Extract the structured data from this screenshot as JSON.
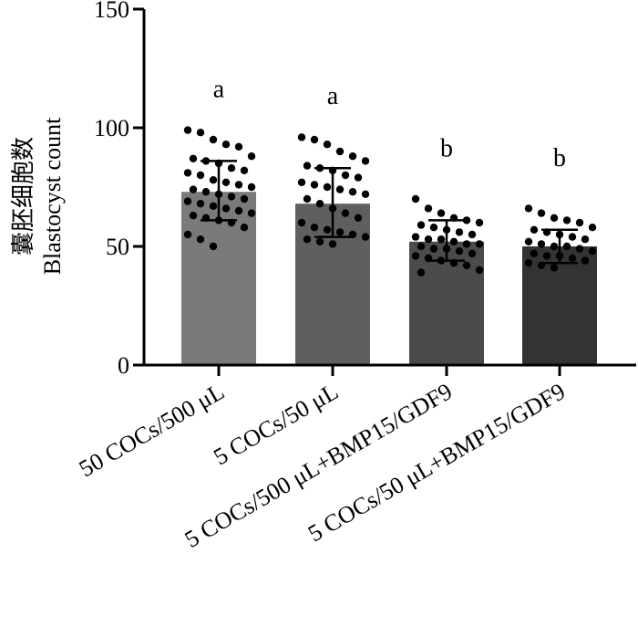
{
  "chart_data": {
    "type": "bar",
    "ylabel_cn": "囊胚细胞数",
    "ylabel_en": "Blastocyst count",
    "xlabel": "",
    "ylim": [
      0,
      150
    ],
    "yticks": [
      "0",
      "50",
      "100",
      "150"
    ],
    "grid": false,
    "categories": [
      "50 COCs/500 μL",
      "5 COCs/50 μL",
      "5 COCs/500 μL+BMP15/GDF9",
      "5 COCs/50 μL+BMP15/GDF9"
    ],
    "values": [
      73,
      68,
      52,
      50
    ],
    "error_low": [
      61,
      54,
      44,
      43
    ],
    "error_high": [
      86,
      83,
      61,
      57
    ],
    "significance": [
      "a",
      "a",
      "b",
      "b"
    ],
    "colors": [
      "#7a7a7a",
      "#5f5f5f",
      "#4b4b4b",
      "#333333"
    ],
    "points": [
      [
        99,
        98,
        95,
        93,
        92,
        88,
        87,
        86,
        85,
        83,
        82,
        81,
        80,
        78,
        77,
        76,
        75,
        74,
        73,
        72,
        71,
        70,
        69,
        68,
        67,
        66,
        65,
        64,
        63,
        62,
        61,
        60,
        58,
        55,
        53,
        50
      ],
      [
        96,
        95,
        93,
        90,
        88,
        86,
        84,
        83,
        82,
        80,
        79,
        77,
        76,
        75,
        74,
        73,
        72,
        70,
        68,
        66,
        64,
        62,
        60,
        58,
        57,
        56,
        55,
        54,
        53,
        52,
        51
      ],
      [
        70,
        66,
        64,
        62,
        61,
        60,
        59,
        58,
        57,
        56,
        55,
        54,
        53,
        53,
        52,
        51,
        51,
        50,
        49,
        49,
        48,
        47,
        46,
        45,
        44,
        43,
        42,
        40,
        39
      ],
      [
        66,
        64,
        62,
        61,
        60,
        58,
        57,
        56,
        55,
        54,
        53,
        52,
        51,
        50,
        50,
        49,
        48,
        47,
        46,
        46,
        45,
        44,
        43,
        42,
        41
      ]
    ]
  }
}
